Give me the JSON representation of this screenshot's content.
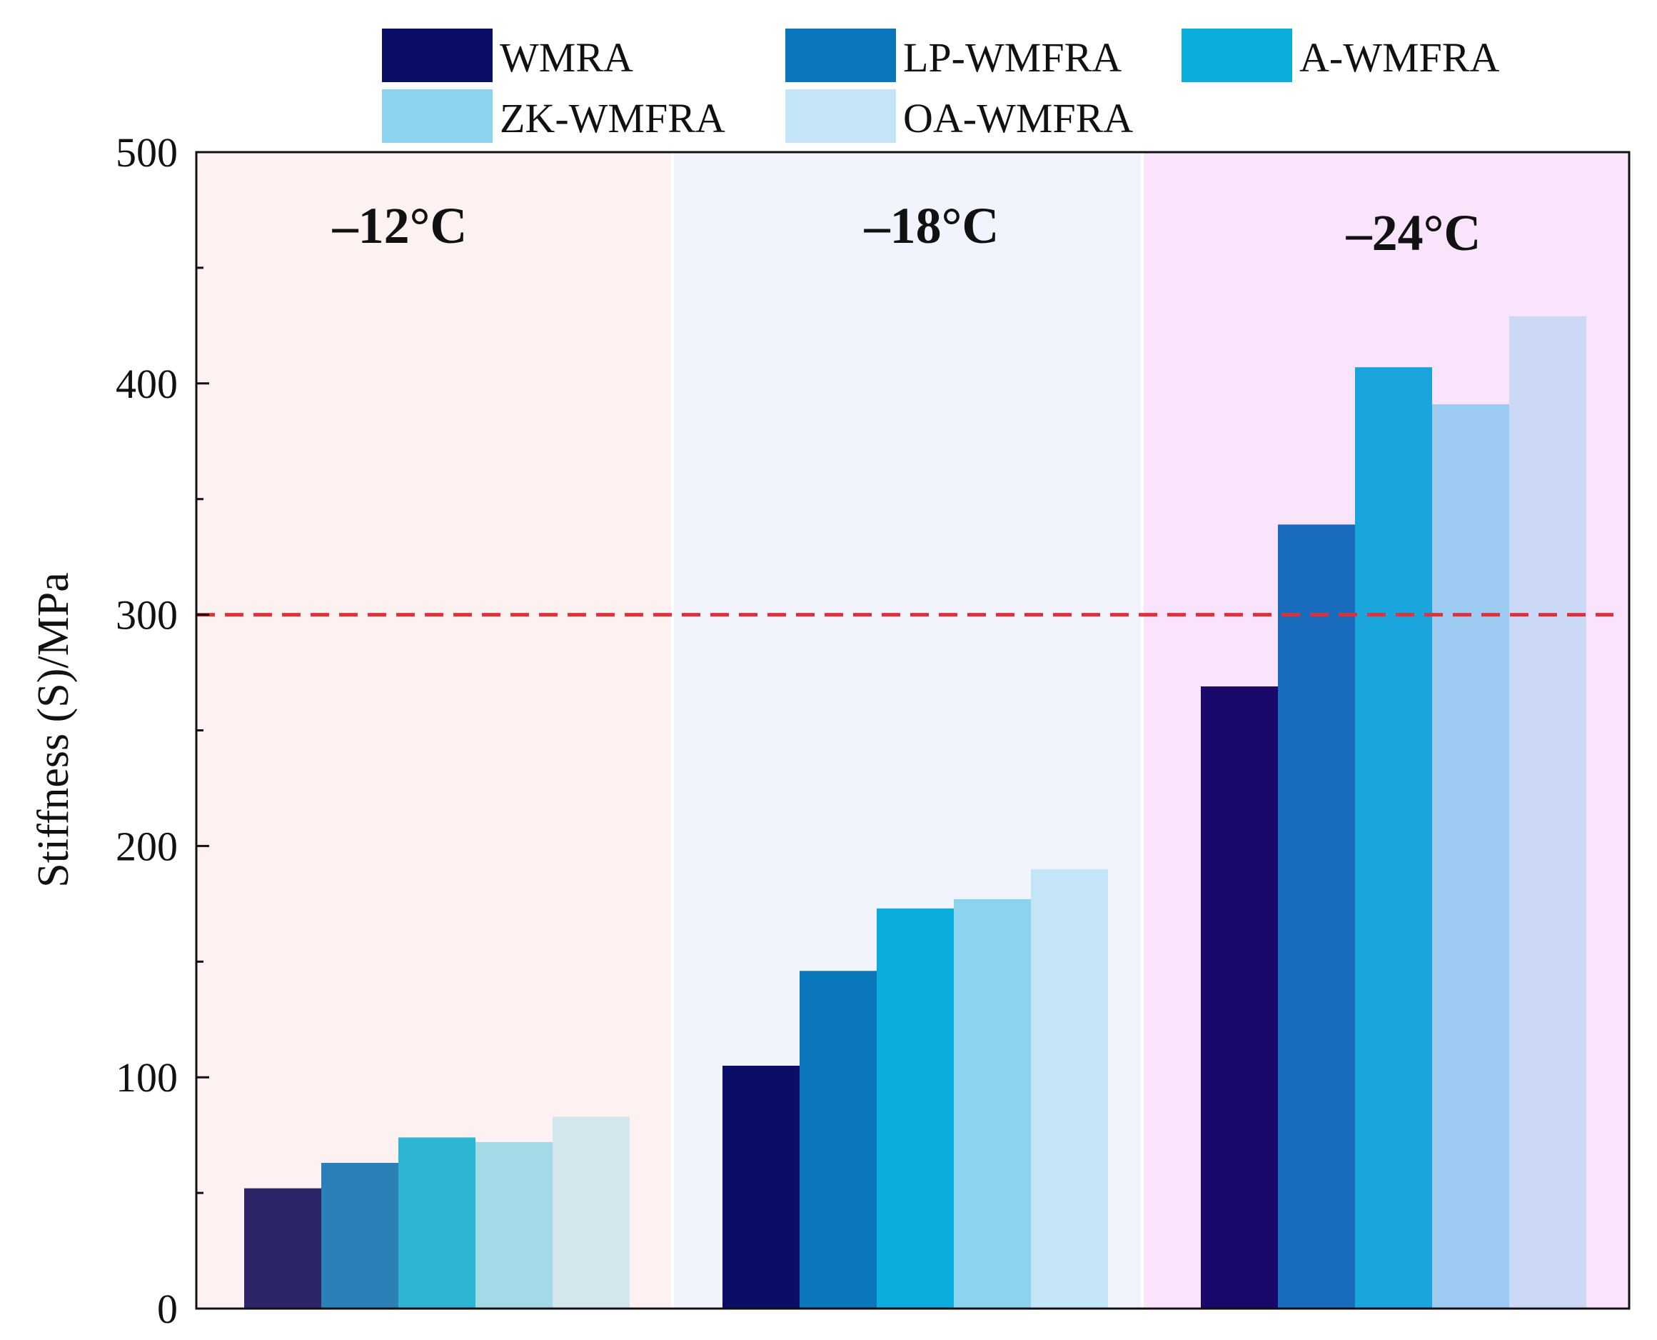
{
  "chart_data": {
    "type": "bar",
    "title": "",
    "xlabel": "",
    "ylabel": "Stiffness (S)/MPa",
    "ylim": [
      0,
      500
    ],
    "yticks": [
      0,
      100,
      200,
      300,
      400,
      500
    ],
    "grid": false,
    "legend_position": "top",
    "reference_line": {
      "value": 300,
      "style": "dashed",
      "color": "#e0303a"
    },
    "groups": [
      {
        "label": "–12°C",
        "background": "#fdf1f1",
        "values": [
          52,
          63,
          74,
          72,
          83
        ],
        "colors": [
          "#2c2568",
          "#2b80b7",
          "#2db6d3",
          "#a4d9e8",
          "#d3e6ee"
        ]
      },
      {
        "label": "–18°C",
        "background": "#f1f3fd",
        "values": [
          105,
          146,
          173,
          177,
          190
        ],
        "colors": [
          "#0a0e66",
          "#0a77bd",
          "#0aaddb",
          "#8bd3ee",
          "#c3e5f7"
        ]
      },
      {
        "label": "–24°C",
        "background": "#f9e4fb",
        "values": [
          269,
          339,
          407,
          391,
          429
        ],
        "colors": [
          "#1a076a",
          "#1a6cbe",
          "#1aa5dd",
          "#9ccaf0",
          "#cbd9f6"
        ]
      }
    ],
    "series": [
      {
        "name": "WMRA",
        "legend_color": "#0a0e66"
      },
      {
        "name": "LP-WMFRA",
        "legend_color": "#0a77bd"
      },
      {
        "name": "A-WMFRA",
        "legend_color": "#0aaddb"
      },
      {
        "name": "ZK-WMFRA",
        "legend_color": "#8bd3ee"
      },
      {
        "name": "OA-WMFRA",
        "legend_color": "#c3e5f7"
      }
    ]
  }
}
